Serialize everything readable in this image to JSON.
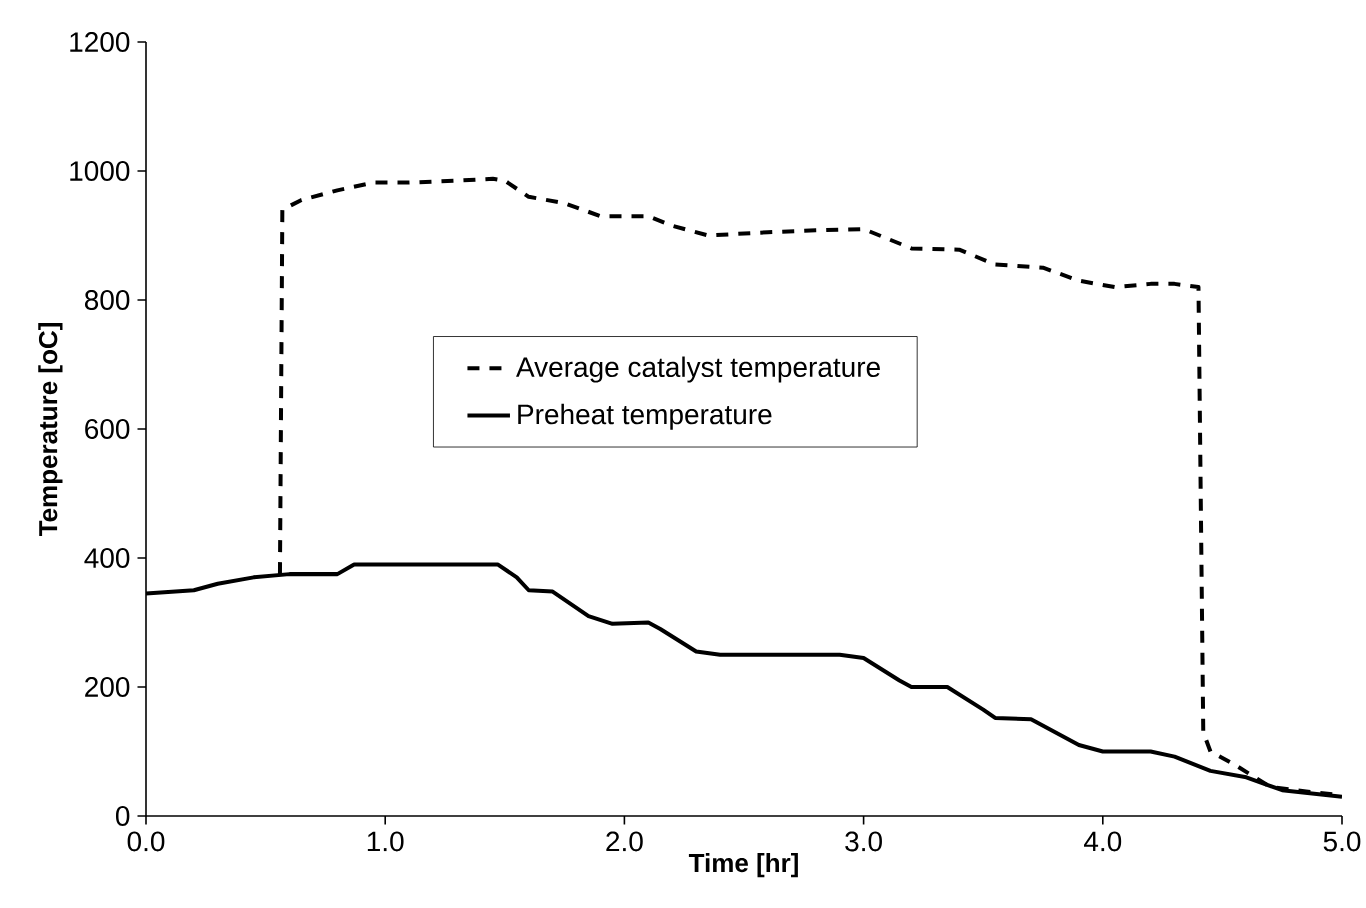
{
  "chart_data": {
    "type": "line",
    "xlabel": "Time [hr]",
    "ylabel": "Temperature [oC]",
    "xlim": [
      0,
      5
    ],
    "ylim": [
      0,
      1200
    ],
    "xticks": [
      {
        "value": 0,
        "label": "0.0"
      },
      {
        "value": 1,
        "label": "1.0"
      },
      {
        "value": 2,
        "label": "2.0"
      },
      {
        "value": 3,
        "label": "3.0"
      },
      {
        "value": 4,
        "label": "4.0"
      },
      {
        "value": 5,
        "label": "5.0"
      }
    ],
    "yticks": [
      0,
      200,
      400,
      600,
      800,
      1000,
      1200
    ],
    "grid": false,
    "legend": "center",
    "series": [
      {
        "name": "Average catalyst temperature",
        "color": "#000000",
        "line_style": "dashed",
        "x": [
          0.56,
          0.57,
          0.65,
          0.8,
          0.95,
          1.1,
          1.3,
          1.45,
          1.5,
          1.6,
          1.75,
          1.9,
          2.1,
          2.2,
          2.35,
          2.6,
          2.8,
          3.0,
          3.1,
          3.2,
          3.4,
          3.55,
          3.75,
          3.9,
          4.05,
          4.2,
          4.3,
          4.4,
          4.42,
          4.45,
          4.55,
          4.7,
          4.85,
          5.0
        ],
        "values": [
          375,
          940,
          955,
          970,
          982,
          982,
          985,
          988,
          985,
          960,
          950,
          930,
          930,
          915,
          900,
          905,
          908,
          910,
          895,
          880,
          878,
          855,
          850,
          830,
          820,
          825,
          825,
          820,
          130,
          100,
          80,
          45,
          38,
          32
        ]
      },
      {
        "name": "Preheat temperature",
        "color": "#000000",
        "line_style": "solid",
        "x": [
          0,
          0.2,
          0.3,
          0.45,
          0.6,
          0.8,
          0.87,
          1.0,
          1.47,
          1.55,
          1.6,
          1.7,
          1.85,
          1.95,
          2.1,
          2.15,
          2.3,
          2.4,
          2.9,
          3.0,
          3.15,
          3.2,
          3.35,
          3.5,
          3.55,
          3.7,
          3.8,
          3.9,
          4.0,
          4.2,
          4.3,
          4.45,
          4.6,
          4.75,
          5.0
        ],
        "values": [
          345,
          350,
          360,
          370,
          375,
          375,
          390,
          390,
          390,
          370,
          350,
          348,
          310,
          298,
          300,
          290,
          255,
          250,
          250,
          245,
          210,
          200,
          200,
          165,
          152,
          150,
          130,
          110,
          100,
          100,
          92,
          70,
          60,
          40,
          30
        ]
      }
    ]
  }
}
